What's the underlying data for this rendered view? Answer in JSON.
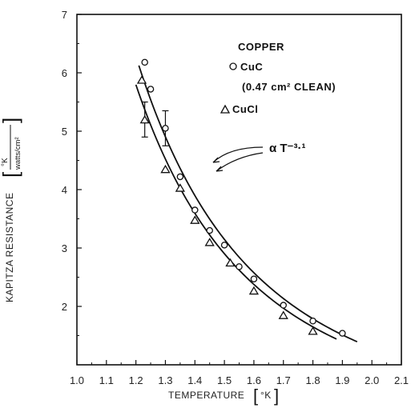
{
  "chart_data": {
    "type": "scatter",
    "xlabel": "TEMPERATURE",
    "xunit": "°K",
    "ylabel": "KAPITZA RESISTANCE",
    "yunit_num": "°K",
    "yunit_den": "watts/cm²",
    "xlim": [
      1.0,
      2.1
    ],
    "ylim": [
      1,
      7
    ],
    "xticks": [
      "1.0",
      "1.1",
      "1.2",
      "1.3",
      "1.4",
      "1.5",
      "1.6",
      "1.7",
      "1.8",
      "1.9",
      "2.0",
      "2.1"
    ],
    "yticks": [
      "2",
      "3",
      "4",
      "5",
      "6",
      "7"
    ],
    "legend": {
      "title": "COPPER",
      "entries": [
        {
          "marker": "circle",
          "label": "CuC"
        },
        {
          "marker": "none",
          "label": "(0.47 cm² CLEAN)"
        },
        {
          "marker": "triangle",
          "label": "CuCl"
        }
      ]
    },
    "annotation": "α T⁻³·¹",
    "series": [
      {
        "name": "CuC",
        "marker": "circle",
        "x": [
          1.23,
          1.25,
          1.3,
          1.35,
          1.4,
          1.45,
          1.5,
          1.55,
          1.6,
          1.7,
          1.8,
          1.9
        ],
        "y": [
          6.18,
          5.72,
          5.05,
          4.22,
          3.65,
          3.3,
          3.05,
          2.68,
          2.47,
          2.02,
          1.75,
          1.54
        ],
        "error_bars": [
          {
            "x": 1.3,
            "low": 4.75,
            "high": 5.35
          }
        ]
      },
      {
        "name": "CuCl",
        "marker": "triangle",
        "x": [
          1.22,
          1.23,
          1.3,
          1.35,
          1.4,
          1.45,
          1.52,
          1.6,
          1.7,
          1.8
        ],
        "y": [
          5.88,
          5.2,
          4.35,
          4.03,
          3.48,
          3.1,
          2.75,
          2.27,
          1.85,
          1.58
        ],
        "error_bars": [
          {
            "x": 1.23,
            "low": 4.9,
            "high": 5.5
          }
        ]
      }
    ],
    "fit_curves": [
      {
        "series": "CuC",
        "x_start": 1.21,
        "x_end": 1.95,
        "coef": 11.06,
        "exponent": -3.1
      },
      {
        "series": "CuCl",
        "x_start": 1.2,
        "x_end": 1.88,
        "coef": 10.2,
        "exponent": -3.1
      }
    ]
  }
}
